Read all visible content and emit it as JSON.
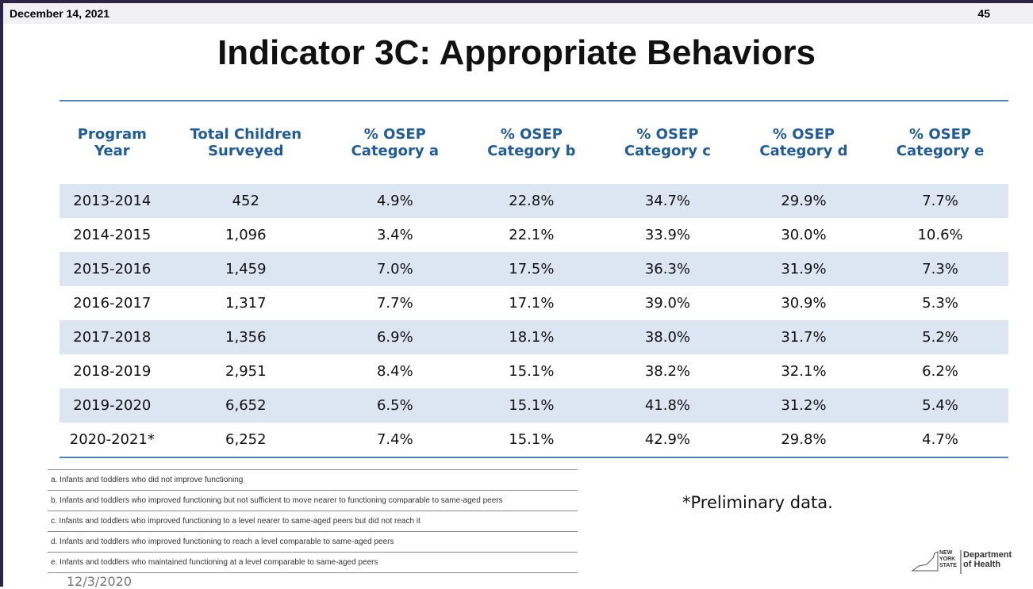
{
  "header": {
    "date": "December 14, 2021",
    "page": "45"
  },
  "title": "Indicator 3C: Appropriate Behaviors",
  "table": {
    "columns": [
      "Program Year",
      "Total Children Surveyed",
      "% OSEP Category a",
      "% OSEP Category b",
      "% OSEP Category c",
      "% OSEP Category d",
      "% OSEP Category e"
    ],
    "rows": [
      [
        "2013-2014",
        "452",
        "4.9%",
        "22.8%",
        "34.7%",
        "29.9%",
        "7.7%"
      ],
      [
        "2014-2015",
        "1,096",
        "3.4%",
        "22.1%",
        "33.9%",
        "30.0%",
        "10.6%"
      ],
      [
        "2015-2016",
        "1,459",
        "7.0%",
        "17.5%",
        "36.3%",
        "31.9%",
        "7.3%"
      ],
      [
        "2016-2017",
        "1,317",
        "7.7%",
        "17.1%",
        "39.0%",
        "30.9%",
        "5.3%"
      ],
      [
        "2017-2018",
        "1,356",
        "6.9%",
        "18.1%",
        "38.0%",
        "31.7%",
        "5.2%"
      ],
      [
        "2018-2019",
        "2,951",
        "8.4%",
        "15.1%",
        "38.2%",
        "32.1%",
        "6.2%"
      ],
      [
        "2019-2020",
        "6,652",
        "6.5%",
        "15.1%",
        "41.8%",
        "31.2%",
        "5.4%"
      ],
      [
        "2020-2021*",
        "6,252",
        "7.4%",
        "15.1%",
        "42.9%",
        "29.8%",
        "4.7%"
      ]
    ]
  },
  "notes": [
    "a. Infants and toddlers who did not improve functioning",
    "b. Infants and toddlers who improved functioning but not sufficient to move nearer to functioning comparable to same-aged peers",
    "c. Infants and toddlers who improved functioning to a level nearer to same-aged peers but did not reach it",
    "d. Infants and toddlers who improved functioning to reach a level comparable to same-aged peers",
    "e. Infants and toddlers who maintained functioning at a level comparable to same-aged peers"
  ],
  "footer_date": "12/3/2020",
  "preliminary_note": "*Preliminary data.",
  "logo": {
    "state": "NEW YORK STATE",
    "agency": "Department of Health"
  }
}
